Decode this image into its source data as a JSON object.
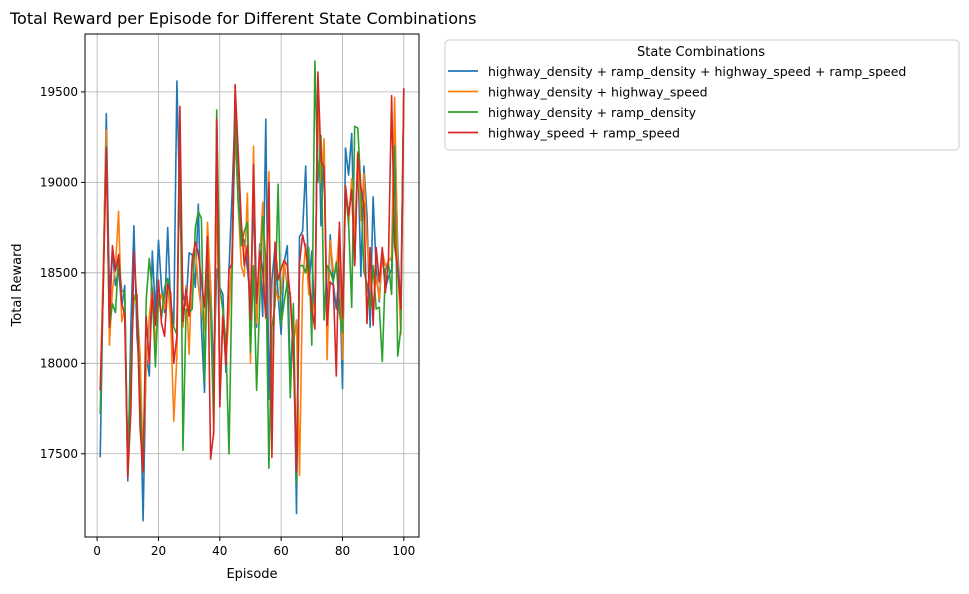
{
  "chart_data": {
    "type": "line",
    "title": "Total Reward per Episode for Different State Combinations",
    "xlabel": "Episode",
    "ylabel": "Total Reward",
    "xlim": [
      -3.95,
      104.95
    ],
    "ylim": [
      17040,
      19820
    ],
    "xticks": [
      0,
      20,
      40,
      60,
      80,
      100
    ],
    "yticks": [
      17500,
      18000,
      18500,
      19000,
      19500
    ],
    "grid": true,
    "legend": {
      "title": "State Combinations",
      "placement": "outside-upper-right"
    },
    "x": [
      1,
      2,
      3,
      4,
      5,
      6,
      7,
      8,
      9,
      10,
      11,
      12,
      13,
      14,
      15,
      16,
      17,
      18,
      19,
      20,
      21,
      22,
      23,
      24,
      25,
      26,
      27,
      28,
      29,
      30,
      31,
      32,
      33,
      34,
      35,
      36,
      37,
      38,
      39,
      40,
      41,
      42,
      43,
      44,
      45,
      46,
      47,
      48,
      49,
      50,
      51,
      52,
      53,
      54,
      55,
      56,
      57,
      58,
      59,
      60,
      61,
      62,
      63,
      64,
      65,
      66,
      67,
      68,
      69,
      70,
      71,
      72,
      73,
      74,
      75,
      76,
      77,
      78,
      79,
      80,
      81,
      82,
      83,
      84,
      85,
      86,
      87,
      88,
      89,
      90,
      91,
      92,
      93,
      94,
      95,
      96,
      97,
      98,
      99,
      100
    ],
    "series": [
      {
        "name": "highway_density + ramp_density + highway_speed + ramp_speed",
        "color": "#1f77b4",
        "values": [
          17480,
          18450,
          19380,
          18380,
          18620,
          18430,
          18520,
          18310,
          18430,
          17350,
          18220,
          18760,
          18150,
          17900,
          17130,
          18050,
          17930,
          18620,
          18280,
          18680,
          18420,
          18280,
          18750,
          18300,
          18220,
          19560,
          18850,
          18380,
          18320,
          18610,
          18600,
          18420,
          18880,
          18200,
          17840,
          18700,
          18440,
          17920,
          18520,
          18420,
          18380,
          17950,
          18520,
          18940,
          19400,
          19120,
          18700,
          18680,
          18520,
          18350,
          18900,
          18200,
          18660,
          18260,
          19350,
          17800,
          18460,
          18640,
          18380,
          18160,
          18560,
          18650,
          17900,
          18280,
          17170,
          18700,
          18730,
          19090,
          18420,
          18620,
          18230,
          19570,
          18760,
          19180,
          18240,
          18710,
          18440,
          18300,
          18530,
          17860,
          19190,
          19040,
          19270,
          18540,
          19150,
          18480,
          19090,
          18820,
          18200,
          18920,
          18520,
          18340,
          18620,
          18410,
          18480,
          18520,
          19330,
          18640,
          18280,
          19520
        ]
      },
      {
        "name": "highway_density + highway_speed",
        "color": "#ff7f0e",
        "values": [
          17850,
          18520,
          19290,
          18100,
          18400,
          18540,
          18840,
          18230,
          18300,
          17400,
          18000,
          18380,
          18320,
          18050,
          17450,
          17980,
          18260,
          18420,
          18100,
          18330,
          18380,
          18300,
          18440,
          18240,
          17680,
          18040,
          19250,
          18200,
          18430,
          18050,
          18560,
          18630,
          18430,
          18290,
          18180,
          18780,
          18420,
          17600,
          19050,
          17850,
          18300,
          18010,
          18270,
          18620,
          19280,
          18870,
          18540,
          18480,
          18940,
          18000,
          19200,
          18220,
          18570,
          18890,
          18320,
          19060,
          17800,
          18430,
          18350,
          18380,
          18560,
          18420,
          18390,
          18100,
          18240,
          17380,
          18440,
          18660,
          18380,
          18370,
          18260,
          19490,
          19000,
          19240,
          18020,
          18680,
          18510,
          18500,
          18750,
          18020,
          18980,
          18760,
          19020,
          18690,
          19170,
          18790,
          19050,
          18680,
          18450,
          18320,
          18480,
          18350,
          18620,
          18540,
          18560,
          18590,
          19470,
          18560,
          18160,
          19470
        ]
      },
      {
        "name": "highway_density + ramp_density",
        "color": "#2ca02c",
        "values": [
          17720,
          18420,
          19200,
          18200,
          18330,
          18280,
          18590,
          18400,
          18390,
          17440,
          18040,
          18350,
          18380,
          17800,
          17400,
          18350,
          18580,
          18400,
          17980,
          18380,
          18250,
          18420,
          18470,
          18350,
          18200,
          18160,
          19340,
          17520,
          18300,
          18280,
          18300,
          18750,
          18840,
          18800,
          17900,
          18560,
          18280,
          17710,
          19400,
          18420,
          18290,
          18120,
          17500,
          18500,
          19370,
          18900,
          18650,
          18730,
          18780,
          18060,
          18540,
          17850,
          18330,
          18810,
          18570,
          17420,
          18200,
          18320,
          18990,
          18210,
          18340,
          18450,
          17810,
          18330,
          17340,
          18540,
          18540,
          18500,
          18640,
          18100,
          19670,
          19000,
          19260,
          18240,
          18540,
          18510,
          18450,
          18560,
          18280,
          18170,
          18950,
          18780,
          18310,
          19310,
          19300,
          18970,
          18510,
          18440,
          18300,
          18540,
          18300,
          18310,
          18010,
          18520,
          18550,
          18380,
          19200,
          18040,
          18190,
          19500
        ]
      },
      {
        "name": "highway_speed + ramp_speed",
        "color": "#d62728",
        "values": [
          17850,
          18400,
          19190,
          18200,
          18650,
          18510,
          18600,
          18330,
          18270,
          17370,
          17740,
          18620,
          18320,
          17640,
          17400,
          18260,
          18000,
          18390,
          18210,
          18460,
          18220,
          18150,
          18440,
          18390,
          18000,
          18150,
          19420,
          18230,
          18410,
          18260,
          18570,
          18670,
          18610,
          18460,
          18310,
          18700,
          17470,
          17620,
          19350,
          17760,
          18260,
          17990,
          18520,
          18550,
          19540,
          19170,
          18780,
          18540,
          18650,
          18240,
          19100,
          18330,
          18620,
          18510,
          18250,
          19000,
          17480,
          18670,
          18460,
          18520,
          18570,
          18540,
          18360,
          18050,
          17400,
          18550,
          18710,
          18630,
          18500,
          18300,
          18190,
          19610,
          19120,
          19080,
          18210,
          18450,
          18430,
          17930,
          18780,
          18250,
          18980,
          18820,
          18960,
          18540,
          19160,
          18970,
          18880,
          18220,
          18640,
          18210,
          18640,
          18450,
          18640,
          18390,
          18580,
          19480,
          18650,
          18520,
          18300,
          19520
        ]
      }
    ]
  }
}
